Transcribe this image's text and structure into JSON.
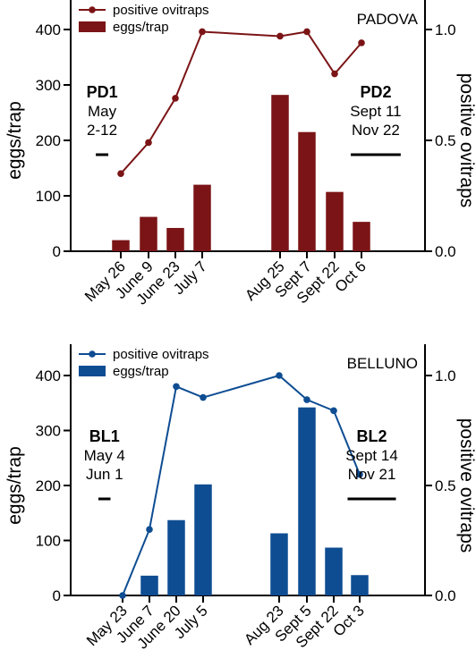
{
  "chart_data": [
    {
      "type": "bar+line",
      "site": "PADOVA",
      "ylabel": "eggs/trap",
      "y2label": "positive ovitraps",
      "ylim": [
        0,
        400
      ],
      "y_ticks": [
        0,
        100,
        200,
        300,
        400
      ],
      "y2lim": [
        0,
        1.0
      ],
      "y2_ticks": [
        0.0,
        0.5,
        1.0
      ],
      "y2_tick_labels": [
        "0.0",
        "0.5",
        "1.0"
      ],
      "categories": [
        "May 26",
        "June 9",
        "June 23",
        "July 7",
        "Aug 25",
        "Sept 7",
        "Sept 22",
        "Oct 6"
      ],
      "legend_position": "top-left",
      "color": "#7b1416",
      "series": [
        {
          "name": "positive ovitraps",
          "kind": "line",
          "axis": "right",
          "values": [
            0.35,
            0.49,
            0.69,
            0.99,
            0.97,
            0.99,
            0.8,
            0.94
          ]
        },
        {
          "name": "eggs/trap",
          "kind": "bar",
          "axis": "left",
          "values": [
            20,
            62,
            42,
            120,
            282,
            215,
            107,
            53
          ]
        }
      ],
      "periods": [
        {
          "name": "PD1",
          "line1": "May",
          "line2": "2-12",
          "from": -0.9,
          "to": -0.45
        },
        {
          "name": "PD2",
          "line1": "Sept 11",
          "line2": "Nov 22",
          "from": 6.55,
          "to": 8.35
        }
      ]
    },
    {
      "type": "bar+line",
      "site": "BELLUNO",
      "ylabel": "eggs/trap",
      "y2label": "positive ovitraps",
      "ylim": [
        0,
        400
      ],
      "y_ticks": [
        0,
        100,
        200,
        300,
        400
      ],
      "y2lim": [
        0,
        1.0
      ],
      "y2_ticks": [
        0.0,
        0.5,
        1.0
      ],
      "y2_tick_labels": [
        "0.0",
        "0.5",
        "1.0"
      ],
      "categories": [
        "May 23",
        "June 7",
        "June 20",
        "July 5",
        "Aug 23",
        "Sept 5",
        "Sept 22",
        "Oct 3"
      ],
      "legend_position": "top-left",
      "color": "#0e4d92",
      "series": [
        {
          "name": "positive ovitraps",
          "kind": "line",
          "axis": "right",
          "values": [
            0.0,
            0.3,
            0.95,
            0.9,
            1.0,
            0.89,
            0.84,
            0.55
          ]
        },
        {
          "name": "eggs/trap",
          "kind": "bar",
          "axis": "left",
          "values": [
            0,
            36,
            137,
            202,
            113,
            342,
            87,
            37
          ]
        }
      ],
      "periods": [
        {
          "name": "BL1",
          "line1": "May 4",
          "line2": "Jun 1",
          "from": -0.9,
          "to": -0.45
        },
        {
          "name": "BL2",
          "line1": "Sept 14",
          "line2": "Nov 21",
          "from": 6.55,
          "to": 8.35
        }
      ]
    }
  ]
}
